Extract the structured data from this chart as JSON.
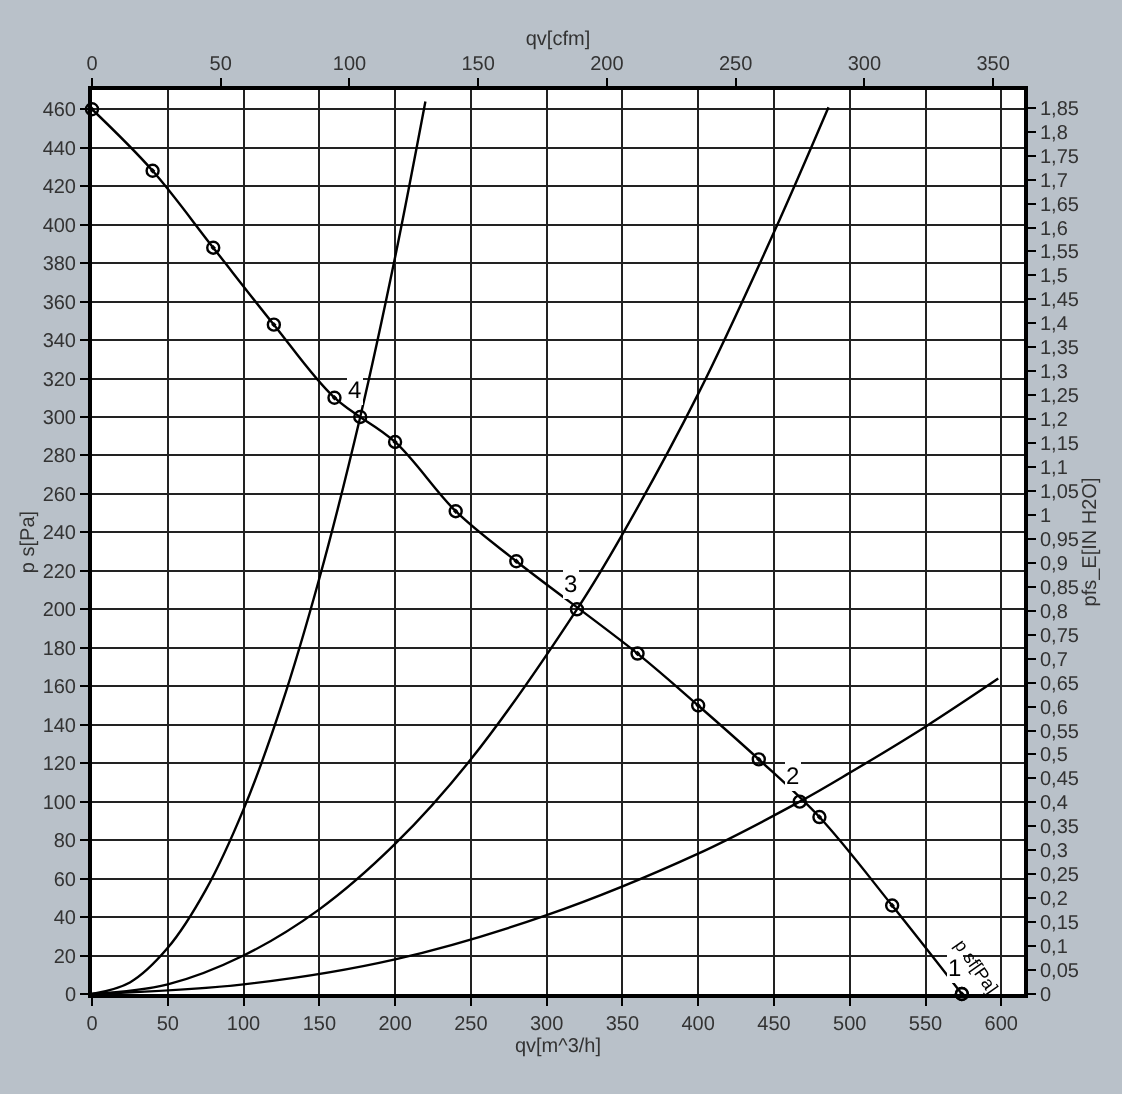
{
  "chart_data": {
    "type": "line",
    "xlabel": "qv[m^3/h]",
    "x2label": "qv[cfm]",
    "ylabel": "p s[Pa]",
    "y2label": "pfs_E[IN H2O]",
    "series": [
      {
        "color": "#000000",
        "marker": "circle",
        "x": [
          0,
          40,
          80,
          120,
          160,
          200,
          240,
          280,
          360,
          400,
          440,
          480,
          528,
          574
        ],
        "values": [
          460,
          428,
          388,
          348,
          310,
          287,
          251,
          225,
          177,
          150,
          122,
          92,
          46,
          0
        ]
      },
      {
        "color": "#000000",
        "x": [
          0,
          25,
          50,
          75,
          100,
          125,
          150,
          177,
          200,
          220
        ],
        "values": [
          0,
          6,
          24,
          54,
          96,
          150,
          216,
          300,
          383,
          464
        ]
      },
      {
        "color": "#000000",
        "x": [
          0,
          50,
          100,
          150,
          200,
          250,
          320,
          350,
          400,
          450,
          486
        ],
        "values": [
          0,
          5,
          20,
          44,
          78,
          122,
          200,
          239,
          312,
          396,
          461
        ]
      },
      {
        "color": "#000000",
        "x": [
          0,
          100,
          200,
          300,
          400,
          467,
          500,
          550,
          598
        ],
        "values": [
          0,
          5,
          18,
          41,
          73,
          100,
          115,
          139,
          164
        ]
      },
      {
        "type": "scatter",
        "color": "#000000",
        "marker": "circle",
        "x": [
          574,
          467,
          320,
          177
        ],
        "values": [
          0,
          100,
          200,
          300
        ]
      }
    ],
    "annotations": [
      {
        "text": "1",
        "x": 574,
        "y": 0
      },
      {
        "text": "2",
        "x": 467,
        "y": 100
      },
      {
        "text": "3",
        "x": 320,
        "y": 200
      },
      {
        "text": "4",
        "x": 177,
        "y": 300
      },
      {
        "text": "p sf[Pa]",
        "x": 566,
        "y": 14
      }
    ],
    "xlim": [
      0,
      615
    ],
    "xticks": [
      0,
      50,
      100,
      150,
      200,
      250,
      300,
      350,
      400,
      450,
      500,
      550,
      600
    ],
    "x2lim": [
      0,
      362
    ],
    "x2ticks": [
      0,
      50,
      100,
      150,
      200,
      250,
      300,
      350
    ],
    "ylim": [
      0,
      470
    ],
    "yticks": [
      0,
      20,
      40,
      60,
      80,
      100,
      120,
      140,
      160,
      180,
      200,
      220,
      240,
      260,
      280,
      300,
      320,
      340,
      360,
      380,
      400,
      420,
      440,
      460
    ],
    "y2lim": [
      0,
      1.887
    ],
    "y2ticks": [
      0,
      {
        "value": 0.05,
        "label": "0,05"
      },
      {
        "value": 0.1,
        "label": "0,1"
      },
      {
        "value": 0.15,
        "label": "0,15"
      },
      {
        "value": 0.2,
        "label": "0,2"
      },
      {
        "value": 0.25,
        "label": "0,25"
      },
      {
        "value": 0.3,
        "label": "0,3"
      },
      {
        "value": 0.35,
        "label": "0,35"
      },
      {
        "value": 0.4,
        "label": "0,4"
      },
      {
        "value": 0.45,
        "label": "0,45"
      },
      {
        "value": 0.5,
        "label": "0,5"
      },
      {
        "value": 0.55,
        "label": "0,55"
      },
      {
        "value": 0.6,
        "label": "0,6"
      },
      {
        "value": 0.65,
        "label": "0,65"
      },
      {
        "value": 0.7,
        "label": "0,7"
      },
      {
        "value": 0.75,
        "label": "0,75"
      },
      {
        "value": 0.8,
        "label": "0,8"
      },
      {
        "value": 0.85,
        "label": "0,85"
      },
      {
        "value": 0.9,
        "label": "0,9"
      },
      {
        "value": 0.95,
        "label": "0,95"
      },
      1,
      {
        "value": 1.05,
        "label": "1,05"
      },
      {
        "value": 1.1,
        "label": "1,1"
      },
      {
        "value": 1.15,
        "label": "1,15"
      },
      {
        "value": 1.2,
        "label": "1,2"
      },
      {
        "value": 1.25,
        "label": "1,25"
      },
      {
        "value": 1.3,
        "label": "1,3"
      },
      {
        "value": 1.35,
        "label": "1,35"
      },
      {
        "value": 1.4,
        "label": "1,4"
      },
      {
        "value": 1.45,
        "label": "1,45"
      },
      {
        "value": 1.5,
        "label": "1,5"
      },
      {
        "value": 1.55,
        "label": "1,55"
      },
      {
        "value": 1.6,
        "label": "1,6"
      },
      {
        "value": 1.65,
        "label": "1,65"
      },
      {
        "value": 1.7,
        "label": "1,7"
      },
      {
        "value": 1.75,
        "label": "1,75"
      },
      {
        "value": 1.8,
        "label": "1,8"
      },
      {
        "value": 1.85,
        "label": "1,85"
      }
    ],
    "grid": true
  }
}
